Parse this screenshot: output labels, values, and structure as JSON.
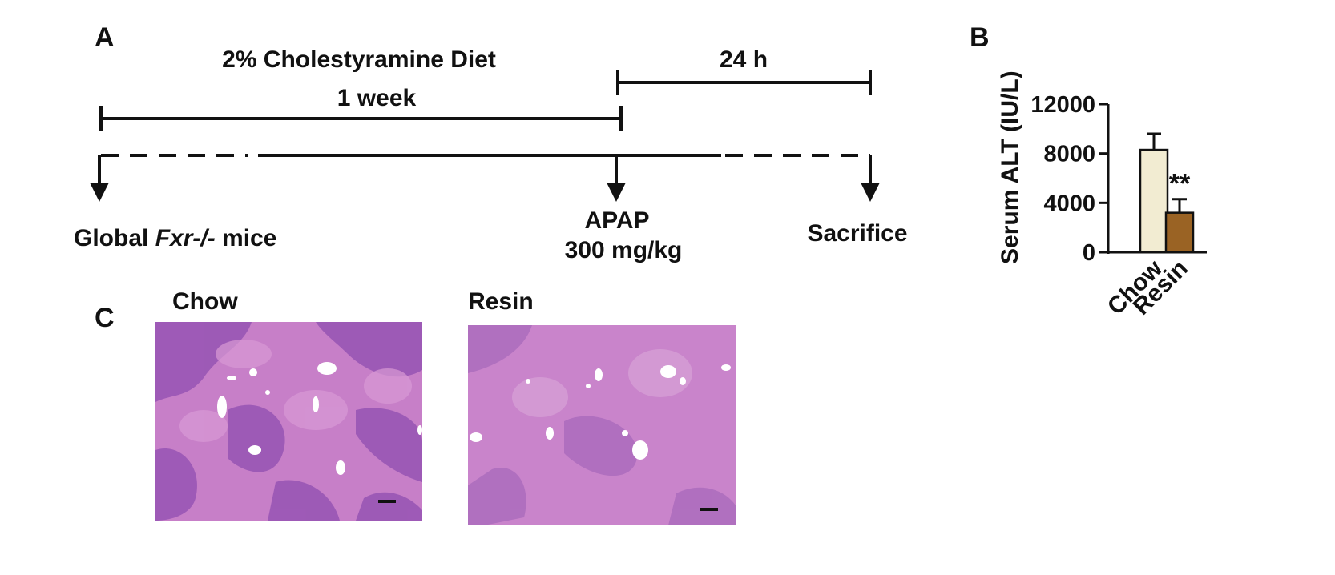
{
  "panel_a": {
    "letter": "A",
    "diet_label": "2% Cholestyramine Diet",
    "week_label": "1 week",
    "hours_label": "24 h",
    "start_label_prefix": "Global ",
    "start_label_gene": "Fxr-/-",
    "start_label_suffix": " mice",
    "treatment_label": "APAP",
    "dose_label": "300 mg/kg",
    "end_label": "Sacrifice"
  },
  "panel_b": {
    "letter": "B"
  },
  "panel_c": {
    "letter": "C",
    "left_title": "Chow",
    "right_title": "Resin"
  },
  "chart_data": {
    "type": "bar",
    "categories": [
      "Chow",
      "Resin"
    ],
    "values": [
      8300,
      3200
    ],
    "errors": [
      1300,
      1100
    ],
    "colors": [
      "#f2ecd2",
      "#9a6324"
    ],
    "ylabel": "Serum ALT (IU/L)",
    "ylim": [
      0,
      12000
    ],
    "yticks": [
      0,
      4000,
      8000,
      12000
    ],
    "significance": [
      "",
      "**"
    ],
    "grid": false
  }
}
